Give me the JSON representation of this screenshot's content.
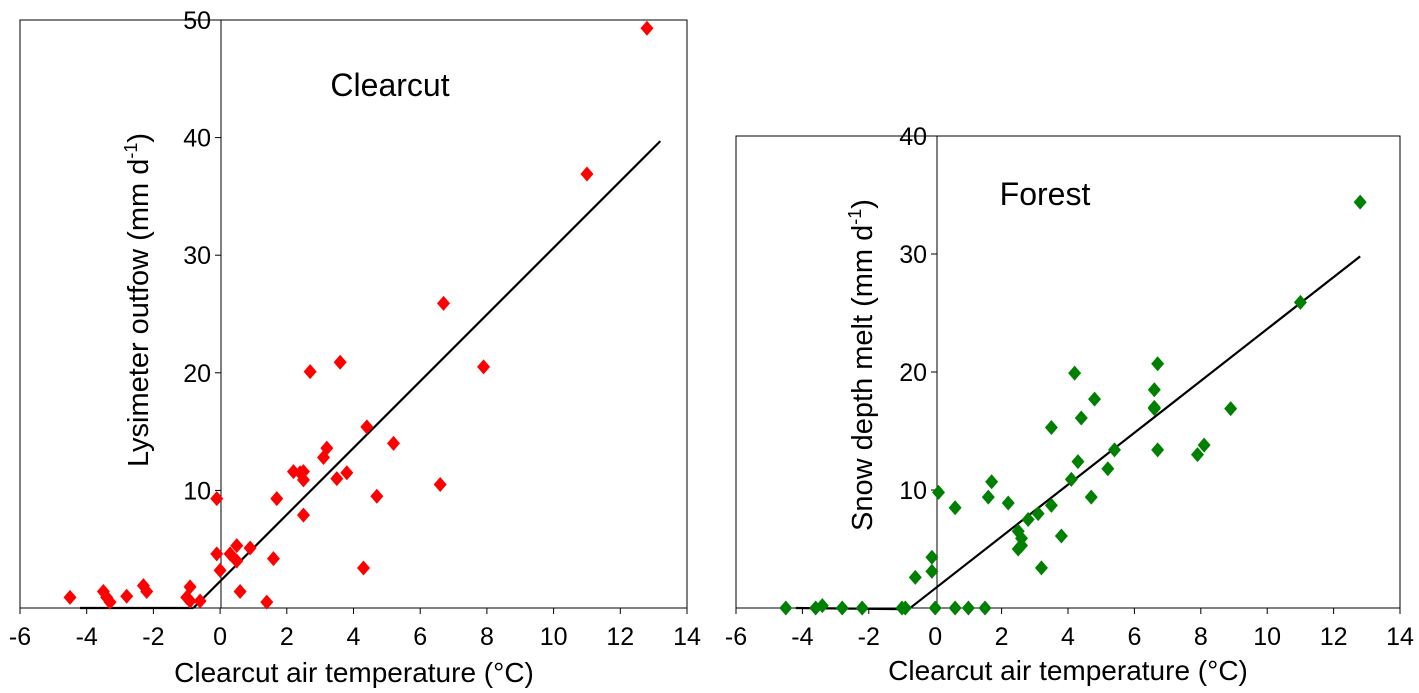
{
  "chart_data": [
    {
      "type": "scatter",
      "panel_label": "Clearcut",
      "xlabel": "Clearcut air temperature (°C)",
      "ylabel_main": "Lysimeter outfow (mm d",
      "ylabel_sup": "-1",
      "ylabel_close": ")",
      "xlim": [
        -6,
        14
      ],
      "ylim": [
        0,
        50
      ],
      "xticks": [
        -6,
        -4,
        -2,
        0,
        2,
        4,
        6,
        8,
        10,
        12,
        14
      ],
      "yticks": [
        10,
        20,
        30,
        40,
        50
      ],
      "marker_color": "#ff0000",
      "fit_segments": [
        [
          [
            -4.2,
            0
          ],
          [
            -0.8,
            0
          ]
        ],
        [
          [
            -0.8,
            0
          ],
          [
            13.2,
            39.7
          ]
        ]
      ],
      "points": [
        [
          -4.5,
          0.9
        ],
        [
          -3.5,
          1.4
        ],
        [
          -3.4,
          0.9
        ],
        [
          -3.3,
          0.5
        ],
        [
          -2.8,
          1.0
        ],
        [
          -2.3,
          1.9
        ],
        [
          -2.2,
          1.4
        ],
        [
          -1.0,
          0.9
        ],
        [
          -0.9,
          1.8
        ],
        [
          -0.9,
          0.6
        ],
        [
          -0.6,
          0.6
        ],
        [
          -0.1,
          9.3
        ],
        [
          -0.1,
          4.6
        ],
        [
          0.0,
          3.2
        ],
        [
          0.3,
          4.6
        ],
        [
          0.5,
          5.3
        ],
        [
          0.5,
          4.0
        ],
        [
          0.6,
          1.4
        ],
        [
          0.9,
          5.1
        ],
        [
          1.4,
          0.5
        ],
        [
          1.6,
          4.2
        ],
        [
          1.7,
          9.3
        ],
        [
          2.2,
          11.6
        ],
        [
          2.4,
          11.5
        ],
        [
          2.5,
          10.9
        ],
        [
          2.5,
          11.6
        ],
        [
          2.5,
          7.9
        ],
        [
          2.7,
          20.1
        ],
        [
          3.1,
          12.8
        ],
        [
          3.2,
          13.6
        ],
        [
          3.5,
          11.0
        ],
        [
          3.6,
          20.9
        ],
        [
          3.8,
          11.5
        ],
        [
          4.3,
          3.4
        ],
        [
          4.4,
          15.4
        ],
        [
          4.7,
          9.5
        ],
        [
          5.2,
          14.0
        ],
        [
          6.6,
          10.5
        ],
        [
          6.7,
          25.9
        ],
        [
          7.9,
          20.5
        ],
        [
          11.0,
          36.9
        ],
        [
          12.8,
          49.3
        ]
      ]
    },
    {
      "type": "scatter",
      "panel_label": "Forest",
      "xlabel": "Clearcut air temperature (°C)",
      "ylabel_main": "Snow depth melt (mm d",
      "ylabel_sup": "-1",
      "ylabel_close": ")",
      "xlim": [
        -6,
        14
      ],
      "ylim": [
        0,
        40
      ],
      "xticks": [
        -6,
        -4,
        -2,
        0,
        2,
        4,
        6,
        8,
        10,
        12,
        14
      ],
      "yticks": [
        10,
        20,
        30,
        40
      ],
      "marker_color": "#008000",
      "fit_segments": [
        [
          [
            -4.2,
            0
          ],
          [
            -0.8,
            -0.1
          ]
        ],
        [
          [
            -0.8,
            -0.1
          ],
          [
            12.8,
            29.8
          ]
        ]
      ],
      "points": [
        [
          -4.5,
          0
        ],
        [
          -3.6,
          0
        ],
        [
          -3.4,
          0.2
        ],
        [
          -2.8,
          0
        ],
        [
          -2.2,
          0
        ],
        [
          -1.0,
          0
        ],
        [
          -0.9,
          0
        ],
        [
          -0.6,
          2.6
        ],
        [
          0.1,
          9.8
        ],
        [
          -0.1,
          4.3
        ],
        [
          -0.1,
          3.1
        ],
        [
          0.0,
          0
        ],
        [
          0.6,
          0
        ],
        [
          0.6,
          8.5
        ],
        [
          1.0,
          0
        ],
        [
          1.5,
          0
        ],
        [
          1.6,
          9.4
        ],
        [
          1.7,
          10.7
        ],
        [
          2.2,
          8.9
        ],
        [
          2.5,
          6.5
        ],
        [
          2.5,
          5.0
        ],
        [
          2.6,
          5.3
        ],
        [
          2.6,
          5.9
        ],
        [
          2.8,
          7.5
        ],
        [
          3.1,
          8.0
        ],
        [
          3.2,
          3.4
        ],
        [
          3.5,
          8.7
        ],
        [
          3.5,
          15.3
        ],
        [
          3.8,
          6.1
        ],
        [
          4.1,
          10.9
        ],
        [
          4.2,
          19.9
        ],
        [
          4.3,
          12.4
        ],
        [
          4.4,
          16.1
        ],
        [
          4.7,
          9.4
        ],
        [
          4.8,
          17.7
        ],
        [
          5.2,
          11.8
        ],
        [
          5.4,
          13.4
        ],
        [
          6.6,
          18.5
        ],
        [
          6.6,
          17.0
        ],
        [
          6.6,
          16.9
        ],
        [
          6.7,
          20.7
        ],
        [
          6.7,
          13.4
        ],
        [
          7.9,
          13.0
        ],
        [
          8.1,
          13.8
        ],
        [
          8.9,
          16.9
        ],
        [
          11.0,
          25.9
        ],
        [
          12.8,
          34.4
        ]
      ]
    }
  ]
}
